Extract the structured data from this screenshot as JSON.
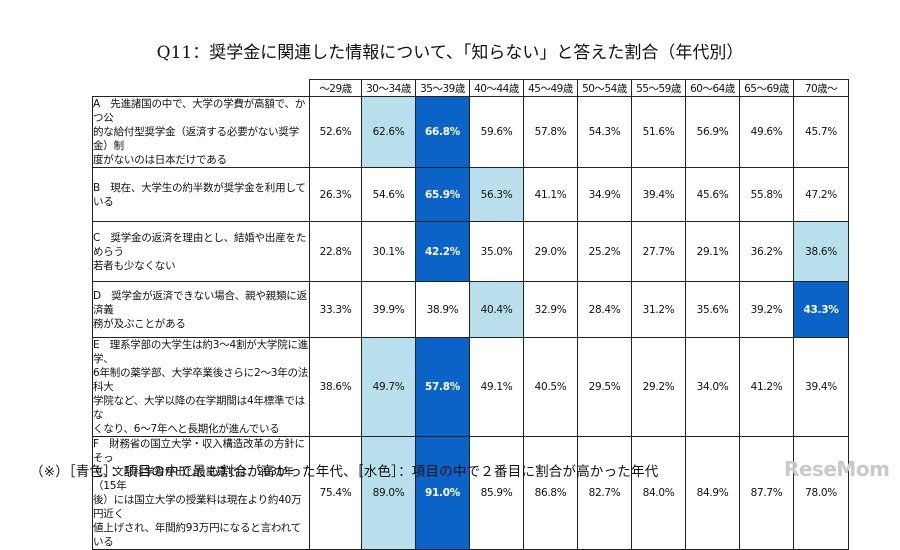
{
  "chart_data": {
    "type": "table",
    "title": "Q11：奨学金に関連した情報について、「知らない」と答えた割合（年代別）",
    "columns": [
      "～29歳",
      "30～34歳",
      "35～39歳",
      "40～44歳",
      "45～49歳",
      "50～54歳",
      "55～59歳",
      "60～64歳",
      "65～69歳",
      "70歳～"
    ],
    "rows": [
      {
        "label": "A　先進諸国の中で、大学の学費が高額で、かつ公\n的な給付型奨学金（返済する必要がない奨学金）制\n度がないのは日本だけである",
        "values": [
          "52.6%",
          "62.6%",
          "66.8%",
          "59.6%",
          "57.8%",
          "54.3%",
          "51.6%",
          "56.9%",
          "49.6%",
          "45.7%"
        ]
      },
      {
        "label": "B　現在、大学生の約半数が奨学金を利用している",
        "values": [
          "26.3%",
          "54.6%",
          "65.9%",
          "56.3%",
          "41.1%",
          "34.9%",
          "39.4%",
          "45.6%",
          "55.8%",
          "47.2%"
        ]
      },
      {
        "label": "C　奨学金の返済を理由とし、結婚や出産をためらう\n若者も少なくない",
        "values": [
          "22.8%",
          "30.1%",
          "42.2%",
          "35.0%",
          "29.0%",
          "25.2%",
          "27.7%",
          "29.1%",
          "36.2%",
          "38.6%"
        ]
      },
      {
        "label": "D　奨学金が返済できない場合、親や親類に返済義\n務が及ぶことがある",
        "values": [
          "33.3%",
          "39.9%",
          "38.9%",
          "40.4%",
          "32.9%",
          "28.4%",
          "31.2%",
          "35.6%",
          "39.2%",
          "43.3%"
        ]
      },
      {
        "label": "E　理系学部の大学生は約3～4割が大学院に進学、\n6年制の薬学部、大学卒業後さらに2～3年の法科大\n学院など、大学以降の在学期間は4年標準ではな\nくなり、6～7年へと長期化が進んでいる",
        "values": [
          "38.6%",
          "49.7%",
          "57.8%",
          "49.1%",
          "40.5%",
          "29.5%",
          "29.2%",
          "34.0%",
          "41.2%",
          "39.4%"
        ]
      },
      {
        "label": "F　財務省の国立大学・収入構造改革の方針にそっ\nて、文部科学省が出した試算では、2031年（15年\n後）には国立大学の授業料は現在より約40万円近く\n値上げされ、年間約93万円になると言われている",
        "values": [
          "75.4%",
          "89.0%",
          "91.0%",
          "85.9%",
          "86.8%",
          "82.7%",
          "84.0%",
          "84.9%",
          "87.7%",
          "78.0%"
        ]
      }
    ],
    "highlight_first": [
      2,
      2,
      2,
      9,
      2,
      2
    ],
    "highlight_second": [
      1,
      3,
      9,
      3,
      1,
      1
    ],
    "colors": {
      "first": "#0b63c8",
      "second": "#b8dfeb",
      "border": "#222222"
    }
  },
  "note": "（※）［青色］：項目の中で最も割合が高かった年代、［水色］：項目の中で２番目に割合が高かった年代",
  "watermark": "ReseMom"
}
